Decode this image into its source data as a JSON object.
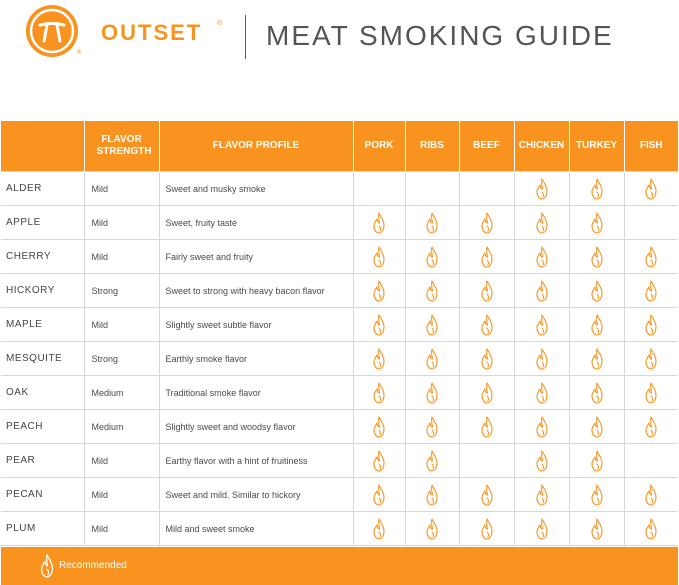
{
  "brand": {
    "name": "OUTSET",
    "registered_mark": "®",
    "title": "MEAT SMOKING GUIDE",
    "accent_color": "#f7931e",
    "logo_icon": "grill-pi-icon"
  },
  "table": {
    "headers": {
      "wood": "",
      "strength": "FLAVOR STRENGTH",
      "profile": "FLAVOR PROFILE",
      "meats": [
        "PORK",
        "RIBS",
        "BEEF",
        "CHICKEN",
        "TURKEY",
        "FISH"
      ]
    },
    "rows": [
      {
        "wood": "ALDER",
        "strength": "Mild",
        "profile": "Sweet and musky smoke",
        "recommended": [
          false,
          false,
          false,
          true,
          true,
          true
        ]
      },
      {
        "wood": "APPLE",
        "strength": "Mild",
        "profile": "Sweet, fruity taste",
        "recommended": [
          true,
          true,
          true,
          true,
          true,
          false
        ]
      },
      {
        "wood": "CHERRY",
        "strength": "Mild",
        "profile": "Fairly sweet and fruity",
        "recommended": [
          true,
          true,
          true,
          true,
          true,
          true
        ]
      },
      {
        "wood": "HICKORY",
        "strength": "Strong",
        "profile": "Sweet to strong with heavy bacon flavor",
        "recommended": [
          true,
          true,
          true,
          true,
          true,
          true
        ]
      },
      {
        "wood": "MAPLE",
        "strength": "Mild",
        "profile": "Slightly sweet subtle flavor",
        "recommended": [
          true,
          true,
          true,
          true,
          true,
          true
        ]
      },
      {
        "wood": "MESQUITE",
        "strength": "Strong",
        "profile": "Earthly smoke flavor",
        "recommended": [
          true,
          true,
          true,
          true,
          true,
          true
        ]
      },
      {
        "wood": "OAK",
        "strength": "Medium",
        "profile": "Traditional smoke flavor",
        "recommended": [
          true,
          true,
          true,
          true,
          true,
          true
        ]
      },
      {
        "wood": "PEACH",
        "strength": "Medium",
        "profile": "Slightly sweet and woodsy flavor",
        "recommended": [
          true,
          true,
          true,
          true,
          true,
          true
        ]
      },
      {
        "wood": "PEAR",
        "strength": "Mild",
        "profile": "Earthy flavor with a hint of fruitiness",
        "recommended": [
          true,
          true,
          false,
          true,
          true,
          false
        ]
      },
      {
        "wood": "PECAN",
        "strength": "Mild",
        "profile": "Sweet and mild. Similar to hickory",
        "recommended": [
          true,
          true,
          true,
          true,
          true,
          true
        ]
      },
      {
        "wood": "PLUM",
        "strength": "Mild",
        "profile": "Mild and sweet smoke",
        "recommended": [
          true,
          true,
          true,
          true,
          true,
          true
        ]
      }
    ]
  },
  "legend": {
    "icon": "flame-icon",
    "label": "Recommended"
  }
}
